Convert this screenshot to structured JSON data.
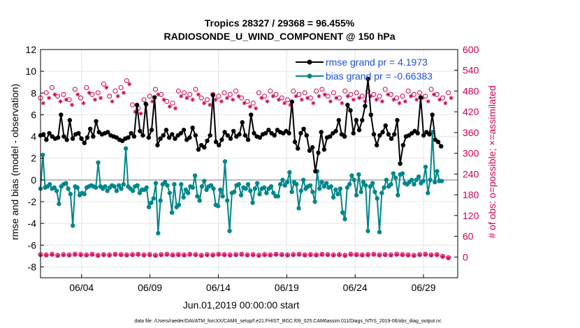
{
  "chart_data": {
    "type": "line",
    "title_line1": "Tropics 28327 / 29368 = 96.455%",
    "title_line2": "RADIOSONDE_U_WIND_COMPONENT @ 150 hPa",
    "xlabel": "Jun.01,2019 00:00:00 start",
    "ylabel_left": "rmse and bias (model - observation)",
    "ylabel_right": "# of obs: o=possible; ×=assimilated",
    "footer": "data file: /Users/raeder/DAI/ATM_forcXX/CAM6_setup/f.e21.FHIST_BGC.f09_025.CAM6assim.011/Diags_NTrS_2019-06/obs_diag_output.nc",
    "x_tick_labels": [
      "06/04",
      "06/09",
      "06/14",
      "06/19",
      "06/24",
      "06/29"
    ],
    "x_tick_values": [
      4,
      9,
      14,
      19,
      24,
      29
    ],
    "xlim": [
      1,
      31.5
    ],
    "ylim_left": [
      -9,
      12
    ],
    "y_ticks_left": [
      -8,
      -6,
      -4,
      -2,
      0,
      2,
      4,
      6,
      8,
      10,
      12
    ],
    "ylim_right": [
      -60,
      600
    ],
    "y_ticks_right": [
      0,
      60,
      120,
      180,
      240,
      300,
      360,
      420,
      480,
      540,
      600
    ],
    "x_step": 0.25,
    "x_start": 1.0,
    "series": [
      {
        "name": "rmse",
        "legend": "rmse grand pr = 4.1973",
        "color": "#000000",
        "values": [
          4.1,
          4.2,
          3.7,
          4.3,
          4.0,
          3.8,
          3.9,
          6.0,
          4.0,
          3.7,
          5.5,
          3.8,
          4.2,
          4.3,
          3.8,
          3.4,
          3.9,
          4.7,
          4.0,
          5.4,
          4.4,
          4.2,
          4.3,
          4.4,
          4.1,
          4.0,
          3.9,
          3.7,
          3.6,
          3.8,
          3.9,
          4.3,
          4.0,
          6.9,
          4.5,
          4.1,
          7.0,
          3.9,
          4.6,
          7.6,
          3.2,
          3.8,
          4.1,
          4.6,
          3.9,
          4.2,
          3.8,
          4.1,
          4.3,
          4.6,
          3.7,
          3.9,
          4.8,
          4.1,
          2.8,
          3.2,
          3.0,
          3.6,
          4.1,
          7.8,
          3.5,
          3.2,
          3.7,
          4.4,
          4.1,
          3.8,
          4.5,
          4.0,
          4.2,
          5.3,
          4.1,
          3.7,
          6.0,
          4.3,
          4.0,
          3.9,
          4.2,
          4.3,
          4.6,
          4.3,
          4.1,
          4.6,
          4.4,
          4.3,
          4.5,
          4.3,
          7.2,
          3.5,
          2.9,
          4.3,
          4.7,
          4.1,
          2.7,
          3.0,
          0.8,
          2.5,
          4.4,
          2.8,
          3.9,
          4.0,
          4.3,
          4.5,
          5.5,
          4.2,
          4.0,
          6.9,
          6.4,
          4.3,
          5.5,
          4.6,
          5.5,
          6.8,
          9.3,
          6.0,
          4.2,
          3.2,
          4.1,
          4.4,
          5.0,
          4.2,
          3.8,
          4.2,
          5.5,
          1.5,
          3.2,
          4.0,
          4.1,
          4.3,
          4.5,
          4.3,
          7.6,
          4.1,
          4.4,
          4.2,
          6.0,
          3.7,
          3.5,
          3.1
        ]
      },
      {
        "name": "bias",
        "legend": "bias grand pr = -0.66383",
        "color": "#00868a",
        "values": [
          -0.8,
          2.3,
          -0.7,
          -0.6,
          -0.4,
          -0.8,
          -0.7,
          -1.0,
          -2.2,
          -0.6,
          -0.4,
          -0.3,
          -0.8,
          -1.3,
          -4.2,
          -0.6,
          -0.7,
          -1.4,
          -1.2,
          -1.3,
          -0.7,
          -0.6,
          -0.5,
          -0.6,
          -0.7,
          1.6,
          -0.6,
          -0.8,
          -0.6,
          -1.0,
          -0.7,
          -0.5,
          -0.6,
          -1.0,
          -0.5,
          -0.8,
          -0.4,
          2.9,
          -0.6,
          -0.8,
          -1.0,
          -0.6,
          -0.5,
          -1.2,
          -0.9,
          -0.9,
          -0.7,
          -2.5,
          -2.1,
          -1.7,
          -0.3,
          -4.9,
          -1.9,
          -0.4,
          -0.2,
          -0.5,
          -1.2,
          -3.0,
          -0.4,
          -2.5,
          -2.3,
          -0.4,
          -1.6,
          -0.9,
          -1.2,
          -0.6,
          -0.7,
          0.4,
          -1.5,
          -1.9,
          -0.6,
          -0.1,
          -0.9,
          -0.6,
          -0.5,
          -0.8,
          -2.3,
          -2.4,
          -0.9,
          -1.5,
          1.7,
          -1.9,
          -4.7,
          -1.2,
          -1.1,
          -0.5,
          -0.4,
          -1.4,
          -0.7,
          -0.8,
          -0.4,
          -1.0,
          -2.1,
          -0.8,
          -0.3,
          -1.3,
          -0.8,
          -0.7,
          -1.2,
          -0.8,
          -0.6,
          -1.2,
          -1.5,
          -1.5,
          -0.4,
          0.0,
          -0.5,
          -0.2,
          0.7,
          -1.1,
          -0.2,
          -0.4,
          -2.6,
          -1.0,
          0.0,
          -0.8,
          -0.6,
          -0.5,
          -1.1,
          -2.0,
          0.8,
          -0.8,
          -0.2,
          -0.6,
          -0.3,
          -0.7,
          -0.6,
          -1.6,
          -0.9,
          -1.3,
          -0.8,
          -3.0,
          -3.6,
          -0.7,
          -0.4,
          0.4,
          0.0,
          -1.4,
          0.5,
          -1.1,
          -0.2,
          -0.5,
          -4.7,
          -0.6,
          -0.3,
          -1.1,
          -1.7,
          -4.8,
          -1.2,
          -0.7,
          0.0,
          -0.6,
          -0.4,
          0.6,
          0.2,
          -1.4,
          0.5,
          0.6,
          -0.3,
          -0.4,
          -0.2,
          0.0,
          -0.4,
          0.0,
          0.3,
          -0.3,
          -0.1,
          1.2,
          -1.2,
          0.0,
          4.4,
          -0.2,
          0.8,
          -0.1,
          -0.1
        ]
      }
    ],
    "obs_possible_step": 1.0,
    "obs_possible": [
      460,
      475,
      490,
      465,
      470,
      455,
      485,
      460,
      490,
      470,
      475,
      500,
      465,
      480,
      490,
      510,
      440,
      430,
      455,
      465,
      485,
      470,
      450,
      445,
      480,
      475,
      470,
      485,
      460,
      455,
      470,
      465,
      475,
      470,
      480,
      460,
      450,
      445,
      475,
      465,
      480,
      470,
      460,
      455,
      480,
      470,
      475,
      460,
      480,
      485,
      465,
      475,
      460,
      480,
      470,
      475,
      465,
      480,
      470,
      465,
      485,
      470,
      460,
      465,
      480,
      470,
      475,
      465,
      485,
      470,
      460,
      475
    ],
    "obs_assim_step": 1.0,
    "obs_assim": [
      445,
      460,
      470,
      450,
      455,
      440,
      470,
      445,
      475,
      455,
      460,
      490,
      450,
      465,
      475,
      500,
      420,
      415,
      440,
      450,
      470,
      455,
      435,
      430,
      465,
      460,
      455,
      470,
      445,
      440,
      455,
      450,
      460,
      455,
      465,
      445,
      435,
      430,
      460,
      450,
      465,
      455,
      445,
      440,
      465,
      455,
      460,
      445,
      465,
      470,
      450,
      460,
      445,
      465,
      455,
      460,
      450,
      465,
      455,
      450,
      470,
      455,
      445,
      450,
      465,
      455,
      460,
      450,
      470,
      455,
      445,
      460
    ],
    "obs_low_possible": [
      7,
      6,
      8,
      5,
      7,
      6,
      8,
      7,
      6,
      8,
      5,
      7,
      6,
      8,
      7,
      6,
      7,
      8,
      6,
      7,
      5,
      7,
      8,
      6,
      7,
      6,
      8,
      7,
      5,
      7,
      6,
      8,
      7,
      6,
      7,
      8,
      6,
      7,
      5,
      7,
      6,
      8,
      7,
      6,
      7,
      8,
      6,
      7,
      6,
      8,
      7,
      6,
      7,
      5,
      8,
      7,
      6,
      7,
      8,
      6,
      7,
      6,
      8,
      7,
      6,
      5,
      7,
      8,
      6,
      7,
      2,
      -2
    ],
    "obs_low_assim": [
      6,
      5,
      7,
      4,
      6,
      5,
      7,
      6,
      5,
      7,
      4,
      6,
      5,
      7,
      6,
      5,
      6,
      7,
      5,
      6,
      4,
      6,
      7,
      5,
      6,
      5,
      7,
      6,
      4,
      6,
      5,
      7,
      6,
      5,
      6,
      7,
      5,
      6,
      4,
      6,
      5,
      7,
      6,
      5,
      6,
      7,
      5,
      6,
      5,
      7,
      6,
      5,
      6,
      4,
      7,
      6,
      5,
      6,
      7,
      5,
      6,
      5,
      7,
      6,
      5,
      4,
      6,
      7,
      5,
      6,
      1,
      -3
    ],
    "colors": {
      "rmse": "#000000",
      "bias": "#00868a",
      "obs": "#cc0055",
      "zero_line": "#b8b8b8",
      "legend_text": "#1f4fd8"
    }
  }
}
